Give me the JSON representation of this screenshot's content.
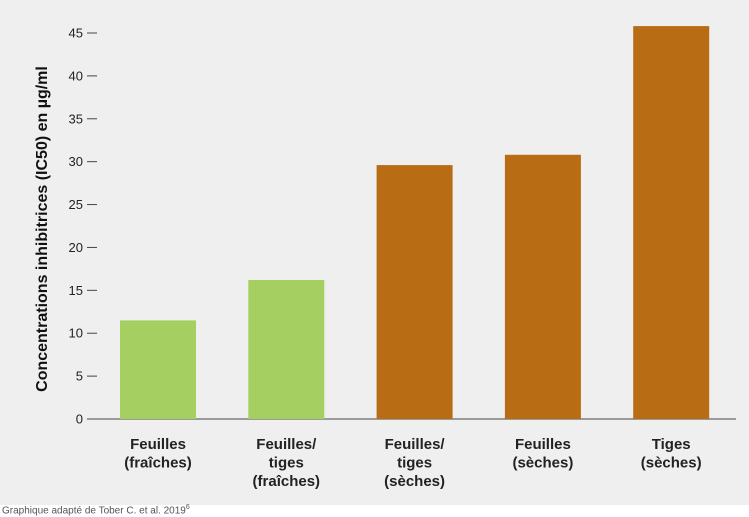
{
  "chart_data": {
    "type": "bar",
    "ylabel": "Concentrations inhibitrices (IC50) en µg/ml",
    "ylim": [
      0,
      45
    ],
    "yticks": [
      0,
      5,
      10,
      15,
      20,
      25,
      30,
      35,
      40,
      45
    ],
    "categories": [
      [
        "Feuilles",
        "(fraîches)"
      ],
      [
        "Feuilles/",
        "tiges",
        "(fraîches)"
      ],
      [
        "Feuilles/",
        "tiges",
        "(sèches)"
      ],
      [
        "Feuilles",
        "(sèches)"
      ],
      [
        "Tiges",
        "(sèches)"
      ]
    ],
    "values": [
      11.5,
      16.2,
      29.6,
      30.8,
      45.8
    ],
    "colors": [
      "#a6cf62",
      "#a6cf62",
      "#b86c14",
      "#b86c14",
      "#b86c14"
    ],
    "grid": false
  },
  "source": {
    "text": "Graphique adapté de Tober C. et al. 2019",
    "sup": "6"
  }
}
